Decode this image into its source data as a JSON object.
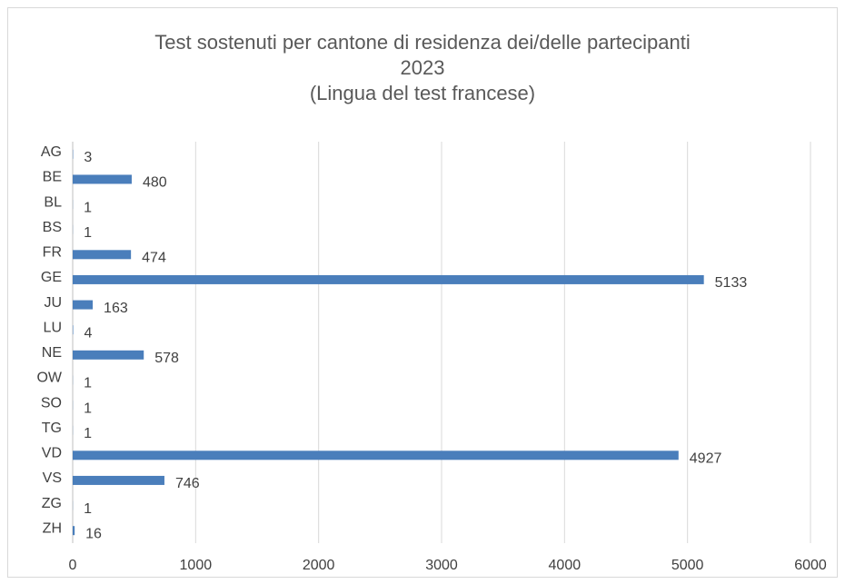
{
  "chart_data": {
    "type": "bar",
    "orientation": "horizontal",
    "title": [
      "Test sostenuti per cantone di residenza dei/delle partecipanti",
      "2023",
      "(Lingua del test francese)"
    ],
    "categories": [
      "AG",
      "BE",
      "BL",
      "BS",
      "FR",
      "GE",
      "JU",
      "LU",
      "NE",
      "OW",
      "SO",
      "TG",
      "VD",
      "VS",
      "ZG",
      "ZH"
    ],
    "values": [
      3,
      480,
      1,
      1,
      474,
      5133,
      163,
      4,
      578,
      1,
      1,
      1,
      4927,
      746,
      1,
      16
    ],
    "color": "#4a7ebb",
    "xlim": [
      0,
      6000
    ],
    "xticks": [
      0,
      1000,
      2000,
      3000,
      4000,
      5000,
      6000
    ],
    "grid": true
  }
}
